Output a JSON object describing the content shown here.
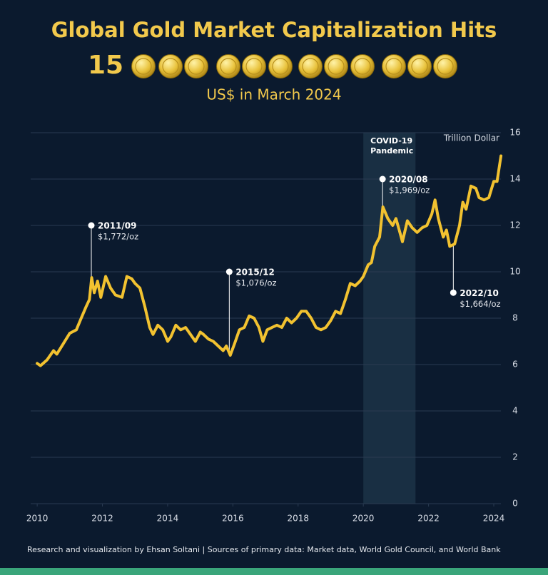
{
  "chart_data": {
    "type": "line",
    "title": "Global Gold Market Capitalization Hits",
    "title_number": "15",
    "subtitle": "US$ in March 2024",
    "y_label": "Trillion Dollar",
    "source": "Research and visualization by Ehsan Soltani | Sources of primary data: Market data, World Gold Council, and World Bank",
    "color": "#f2c230",
    "grid": true,
    "xlim": [
      2009.8,
      2024.35
    ],
    "xticks": [
      2010,
      2012,
      2014,
      2016,
      2018,
      2020,
      2022,
      2024
    ],
    "ylim": [
      0,
      16
    ],
    "yticks": [
      0,
      2,
      4,
      6,
      8,
      10,
      12,
      14,
      16
    ],
    "x": [
      2010.0,
      2010.1,
      2010.3,
      2010.5,
      2010.6,
      2010.8,
      2011.0,
      2011.2,
      2011.35,
      2011.5,
      2011.6,
      2011.67,
      2011.75,
      2011.85,
      2011.95,
      2012.1,
      2012.25,
      2012.4,
      2012.6,
      2012.75,
      2012.9,
      2013.0,
      2013.15,
      2013.3,
      2013.45,
      2013.55,
      2013.7,
      2013.85,
      2014.0,
      2014.1,
      2014.25,
      2014.4,
      2014.55,
      2014.7,
      2014.85,
      2015.0,
      2015.1,
      2015.25,
      2015.4,
      2015.55,
      2015.7,
      2015.8,
      2015.92,
      2016.05,
      2016.2,
      2016.35,
      2016.5,
      2016.65,
      2016.8,
      2016.92,
      2017.05,
      2017.2,
      2017.35,
      2017.5,
      2017.65,
      2017.8,
      2017.95,
      2018.1,
      2018.25,
      2018.4,
      2018.55,
      2018.7,
      2018.85,
      2019.0,
      2019.15,
      2019.3,
      2019.45,
      2019.6,
      2019.75,
      2019.9,
      2020.0,
      2020.15,
      2020.25,
      2020.35,
      2020.5,
      2020.6,
      2020.75,
      2020.9,
      2021.0,
      2021.1,
      2021.2,
      2021.35,
      2021.5,
      2021.65,
      2021.8,
      2021.95,
      2022.1,
      2022.2,
      2022.3,
      2022.45,
      2022.55,
      2022.65,
      2022.8,
      2022.95,
      2023.05,
      2023.15,
      2023.3,
      2023.45,
      2023.55,
      2023.7,
      2023.85,
      2024.0,
      2024.1,
      2024.22
    ],
    "values": [
      6.05,
      5.95,
      6.2,
      6.6,
      6.45,
      6.9,
      7.35,
      7.5,
      8.0,
      8.5,
      8.8,
      9.75,
      9.1,
      9.6,
      8.9,
      9.8,
      9.3,
      9.0,
      8.9,
      9.8,
      9.7,
      9.5,
      9.3,
      8.5,
      7.6,
      7.3,
      7.7,
      7.5,
      7.0,
      7.2,
      7.7,
      7.5,
      7.6,
      7.3,
      7.0,
      7.4,
      7.3,
      7.1,
      7.0,
      6.8,
      6.6,
      6.8,
      6.4,
      6.9,
      7.5,
      7.6,
      8.1,
      8.0,
      7.6,
      7.0,
      7.5,
      7.6,
      7.7,
      7.6,
      8.0,
      7.8,
      8.0,
      8.3,
      8.3,
      8.0,
      7.6,
      7.5,
      7.6,
      7.9,
      8.3,
      8.2,
      8.8,
      9.5,
      9.4,
      9.6,
      9.8,
      10.3,
      10.4,
      11.1,
      11.5,
      12.8,
      12.3,
      12.0,
      12.3,
      11.8,
      11.3,
      12.2,
      11.9,
      11.7,
      11.9,
      12.0,
      12.5,
      13.1,
      12.3,
      11.5,
      11.8,
      11.1,
      11.2,
      12.0,
      13.0,
      12.7,
      13.7,
      13.6,
      13.2,
      13.1,
      13.2,
      13.9,
      13.9,
      15.0
    ],
    "band": {
      "label_lines": [
        "COVID-19",
        "Pandemic"
      ],
      "x": [
        2020.0,
        2021.6
      ]
    },
    "annotations": [
      {
        "date": "2011/09",
        "price": "$1,772/oz",
        "x": 2011.66,
        "y": 12.0,
        "line_to": 9.75
      },
      {
        "date": "2015/12",
        "price": "$1,076/oz",
        "x": 2015.89,
        "y": 10.0,
        "line_to": 6.4
      },
      {
        "date": "2020/08",
        "price": "$1,969/oz",
        "x": 2020.59,
        "y": 14.0,
        "line_to": 12.8
      },
      {
        "date": "2022/10",
        "price": "$1,664/oz",
        "x": 2022.76,
        "y": 9.1,
        "line_to": 11.2
      }
    ]
  }
}
